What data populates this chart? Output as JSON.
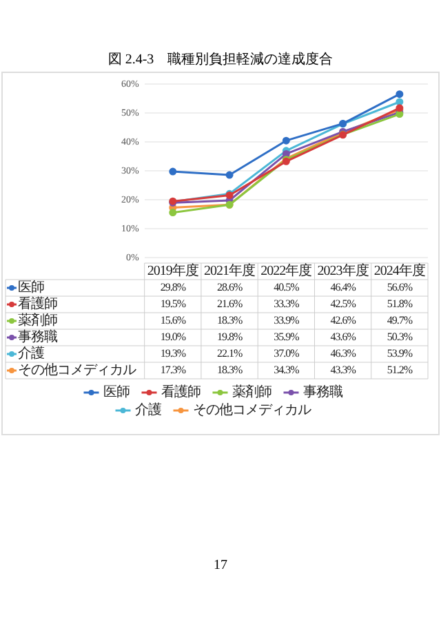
{
  "chart_data": {
    "type": "line",
    "title": "図 2.4-3　職種別負担軽減の達成度合",
    "categories": [
      "2019年度",
      "2021年度",
      "2022年度",
      "2023年度",
      "2024年度"
    ],
    "series": [
      {
        "name": "医師",
        "color": "#2f6fc6",
        "values": [
          29.8,
          28.6,
          40.5,
          46.4,
          56.6
        ],
        "value_labels": [
          "29.8%",
          "28.6%",
          "40.5%",
          "46.4%",
          "56.6%"
        ]
      },
      {
        "name": "看護師",
        "color": "#d63b3b",
        "values": [
          19.5,
          21.6,
          33.3,
          42.5,
          51.8
        ],
        "value_labels": [
          "19.5%",
          "21.6%",
          "33.3%",
          "42.5%",
          "51.8%"
        ]
      },
      {
        "name": "薬剤師",
        "color": "#8cc63f",
        "values": [
          15.6,
          18.3,
          33.9,
          42.6,
          49.7
        ],
        "value_labels": [
          "15.6%",
          "18.3%",
          "33.9%",
          "42.6%",
          "49.7%"
        ]
      },
      {
        "name": "事務職",
        "color": "#7b52ab",
        "values": [
          19.0,
          19.8,
          35.9,
          43.6,
          50.3
        ],
        "value_labels": [
          "19.0%",
          "19.8%",
          "35.9%",
          "43.6%",
          "50.3%"
        ]
      },
      {
        "name": "介護",
        "color": "#4bb7d6",
        "values": [
          19.3,
          22.1,
          37.0,
          46.3,
          53.9
        ],
        "value_labels": [
          "19.3%",
          "22.1%",
          "37.0%",
          "46.3%",
          "53.9%"
        ]
      },
      {
        "name": "その他コメディカル",
        "color": "#f7953f",
        "values": [
          17.3,
          18.3,
          34.3,
          43.3,
          51.2
        ],
        "value_labels": [
          "17.3%",
          "18.3%",
          "34.3%",
          "43.3%",
          "51.2%"
        ]
      }
    ],
    "ylim": [
      0,
      60
    ],
    "yticks": [
      {
        "value": 0,
        "label": "0%"
      },
      {
        "value": 10,
        "label": "10%"
      },
      {
        "value": 20,
        "label": "20%"
      },
      {
        "value": 30,
        "label": "30%"
      },
      {
        "value": 40,
        "label": "40%"
      },
      {
        "value": 50,
        "label": "50%"
      },
      {
        "value": 60,
        "label": "60%"
      }
    ],
    "grid": "y",
    "marker": "circle",
    "legend": "bottom",
    "annotations": [
      "17"
    ]
  }
}
